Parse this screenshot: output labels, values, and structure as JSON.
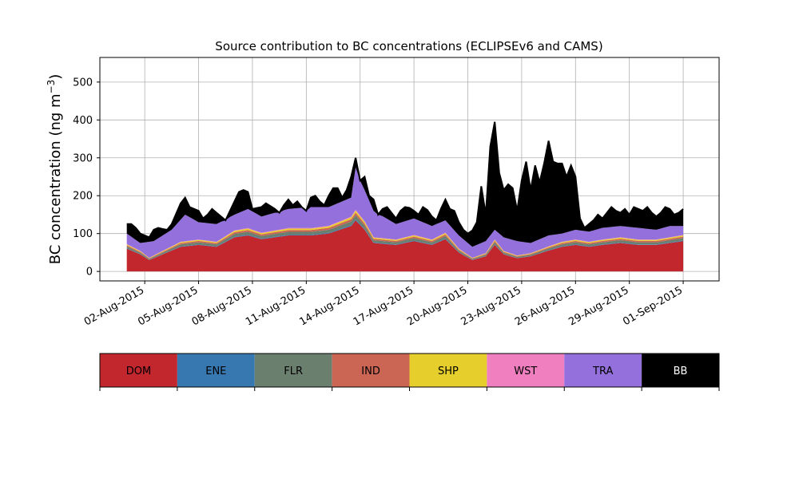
{
  "chart_data": {
    "type": "area",
    "title": "Source contribution to BC concentrations (ECLIPSEv6 and CAMS)",
    "ylabel": "BC concentration (ng m",
    "ylabel_sup": "−3",
    "ylabel_close": ")",
    "xlabel": "",
    "ylim": [
      -25,
      565
    ],
    "xlim": [
      "2015-07-30T12:00",
      "2015-09-03T00:00"
    ],
    "yticks": [
      0,
      100,
      200,
      300,
      400,
      500
    ],
    "xticks": [
      "02-Aug-2015",
      "05-Aug-2015",
      "08-Aug-2015",
      "11-Aug-2015",
      "14-Aug-2015",
      "17-Aug-2015",
      "20-Aug-2015",
      "23-Aug-2015",
      "26-Aug-2015",
      "29-Aug-2015",
      "01-Sep-2015"
    ],
    "xtick_dates": [
      "2015-08-02",
      "2015-08-05",
      "2015-08-08",
      "2015-08-11",
      "2015-08-14",
      "2015-08-17",
      "2015-08-20",
      "2015-08-23",
      "2015-08-26",
      "2015-08-29",
      "2015-09-01"
    ],
    "grid": true,
    "stacked": true,
    "x_start": "2015-08-01T00:00",
    "x_step_hours": 6,
    "x_count": 125,
    "legend": [
      {
        "name": "DOM",
        "color": "#c1272d"
      },
      {
        "name": "ENE",
        "color": "#3778b0"
      },
      {
        "name": "FLR",
        "color": "#6b7f6f"
      },
      {
        "name": "IND",
        "color": "#cc6654"
      },
      {
        "name": "SHP",
        "color": "#e6cf2d"
      },
      {
        "name": "WST",
        "color": "#f07fbf"
      },
      {
        "name": "TRA",
        "color": "#9370db"
      },
      {
        "name": "BB",
        "color": "#000000"
      }
    ],
    "total_keypoints": [
      [
        0,
        125
      ],
      [
        1,
        125
      ],
      [
        2,
        115
      ],
      [
        3,
        100
      ],
      [
        4,
        95
      ],
      [
        5,
        90
      ],
      [
        6,
        110
      ],
      [
        7,
        115
      ],
      [
        8,
        112
      ],
      [
        9,
        110
      ],
      [
        10,
        125
      ],
      [
        12,
        180
      ],
      [
        13,
        195
      ],
      [
        14,
        170
      ],
      [
        16,
        160
      ],
      [
        17,
        140
      ],
      [
        18,
        150
      ],
      [
        19,
        165
      ],
      [
        20,
        155
      ],
      [
        21,
        145
      ],
      [
        22,
        135
      ],
      [
        24,
        185
      ],
      [
        25,
        210
      ],
      [
        26,
        215
      ],
      [
        27,
        210
      ],
      [
        28,
        165
      ],
      [
        30,
        170
      ],
      [
        31,
        180
      ],
      [
        33,
        165
      ],
      [
        34,
        155
      ],
      [
        35,
        175
      ],
      [
        36,
        190
      ],
      [
        37,
        175
      ],
      [
        38,
        185
      ],
      [
        39,
        170
      ],
      [
        40,
        160
      ],
      [
        41,
        195
      ],
      [
        42,
        200
      ],
      [
        43,
        185
      ],
      [
        44,
        175
      ],
      [
        45,
        200
      ],
      [
        46,
        220
      ],
      [
        47,
        220
      ],
      [
        48,
        195
      ],
      [
        49,
        215
      ],
      [
        50,
        250
      ],
      [
        51,
        300
      ],
      [
        52,
        240
      ],
      [
        53,
        250
      ],
      [
        54,
        200
      ],
      [
        55,
        190
      ],
      [
        56,
        150
      ],
      [
        57,
        165
      ],
      [
        58,
        170
      ],
      [
        59,
        155
      ],
      [
        60,
        140
      ],
      [
        61,
        160
      ],
      [
        62,
        170
      ],
      [
        63,
        168
      ],
      [
        64,
        160
      ],
      [
        65,
        150
      ],
      [
        66,
        170
      ],
      [
        67,
        162
      ],
      [
        68,
        145
      ],
      [
        69,
        135
      ],
      [
        70,
        165
      ],
      [
        71,
        190
      ],
      [
        72,
        165
      ],
      [
        73,
        160
      ],
      [
        74,
        130
      ],
      [
        75,
        110
      ],
      [
        76,
        100
      ],
      [
        77,
        108
      ],
      [
        78,
        130
      ],
      [
        79,
        225
      ],
      [
        80,
        150
      ],
      [
        81,
        330
      ],
      [
        82,
        395
      ],
      [
        83,
        260
      ],
      [
        84,
        215
      ],
      [
        85,
        230
      ],
      [
        86,
        220
      ],
      [
        87,
        160
      ],
      [
        88,
        240
      ],
      [
        89,
        290
      ],
      [
        90,
        215
      ],
      [
        91,
        280
      ],
      [
        92,
        235
      ],
      [
        93,
        285
      ],
      [
        94,
        345
      ],
      [
        95,
        290
      ],
      [
        96,
        285
      ],
      [
        97,
        285
      ],
      [
        98,
        250
      ],
      [
        99,
        280
      ],
      [
        100,
        250
      ],
      [
        101,
        140
      ],
      [
        102,
        115
      ],
      [
        103,
        125
      ],
      [
        104,
        135
      ],
      [
        105,
        150
      ],
      [
        106,
        140
      ],
      [
        107,
        155
      ],
      [
        108,
        170
      ],
      [
        109,
        160
      ],
      [
        110,
        155
      ],
      [
        111,
        165
      ],
      [
        112,
        150
      ],
      [
        113,
        170
      ],
      [
        114,
        165
      ],
      [
        115,
        160
      ],
      [
        116,
        170
      ],
      [
        117,
        155
      ],
      [
        118,
        145
      ],
      [
        119,
        155
      ],
      [
        120,
        170
      ],
      [
        121,
        165
      ],
      [
        122,
        150
      ],
      [
        123,
        155
      ],
      [
        124,
        165
      ]
    ],
    "tra_keypoints": [
      [
        0,
        100
      ],
      [
        3,
        75
      ],
      [
        6,
        80
      ],
      [
        10,
        110
      ],
      [
        13,
        150
      ],
      [
        16,
        130
      ],
      [
        20,
        125
      ],
      [
        24,
        150
      ],
      [
        27,
        165
      ],
      [
        30,
        145
      ],
      [
        36,
        165
      ],
      [
        41,
        170
      ],
      [
        45,
        170
      ],
      [
        50,
        195
      ],
      [
        51,
        275
      ],
      [
        53,
        215
      ],
      [
        55,
        160
      ],
      [
        60,
        125
      ],
      [
        64,
        140
      ],
      [
        68,
        120
      ],
      [
        71,
        135
      ],
      [
        74,
        95
      ],
      [
        77,
        65
      ],
      [
        80,
        80
      ],
      [
        82,
        110
      ],
      [
        84,
        90
      ],
      [
        87,
        80
      ],
      [
        90,
        75
      ],
      [
        94,
        95
      ],
      [
        97,
        100
      ],
      [
        100,
        110
      ],
      [
        103,
        105
      ],
      [
        106,
        115
      ],
      [
        110,
        120
      ],
      [
        114,
        115
      ],
      [
        118,
        110
      ],
      [
        121,
        120
      ],
      [
        124,
        120
      ]
    ],
    "dom_keypoints": [
      [
        0,
        60
      ],
      [
        3,
        45
      ],
      [
        5,
        30
      ],
      [
        8,
        45
      ],
      [
        12,
        65
      ],
      [
        16,
        70
      ],
      [
        20,
        65
      ],
      [
        24,
        90
      ],
      [
        27,
        95
      ],
      [
        30,
        85
      ],
      [
        36,
        95
      ],
      [
        41,
        95
      ],
      [
        45,
        100
      ],
      [
        50,
        120
      ],
      [
        51,
        135
      ],
      [
        53,
        110
      ],
      [
        55,
        75
      ],
      [
        60,
        70
      ],
      [
        64,
        80
      ],
      [
        68,
        70
      ],
      [
        71,
        85
      ],
      [
        74,
        50
      ],
      [
        77,
        30
      ],
      [
        80,
        40
      ],
      [
        82,
        70
      ],
      [
        84,
        45
      ],
      [
        87,
        35
      ],
      [
        90,
        40
      ],
      [
        94,
        55
      ],
      [
        97,
        65
      ],
      [
        100,
        70
      ],
      [
        103,
        65
      ],
      [
        106,
        70
      ],
      [
        110,
        75
      ],
      [
        114,
        70
      ],
      [
        118,
        70
      ],
      [
        121,
        75
      ],
      [
        124,
        80
      ]
    ],
    "minor_shares": {
      "ENE": 0.02,
      "FLR": 0.08,
      "IND": 0.05,
      "SHP": 0.04,
      "WST": 0.015
    }
  }
}
